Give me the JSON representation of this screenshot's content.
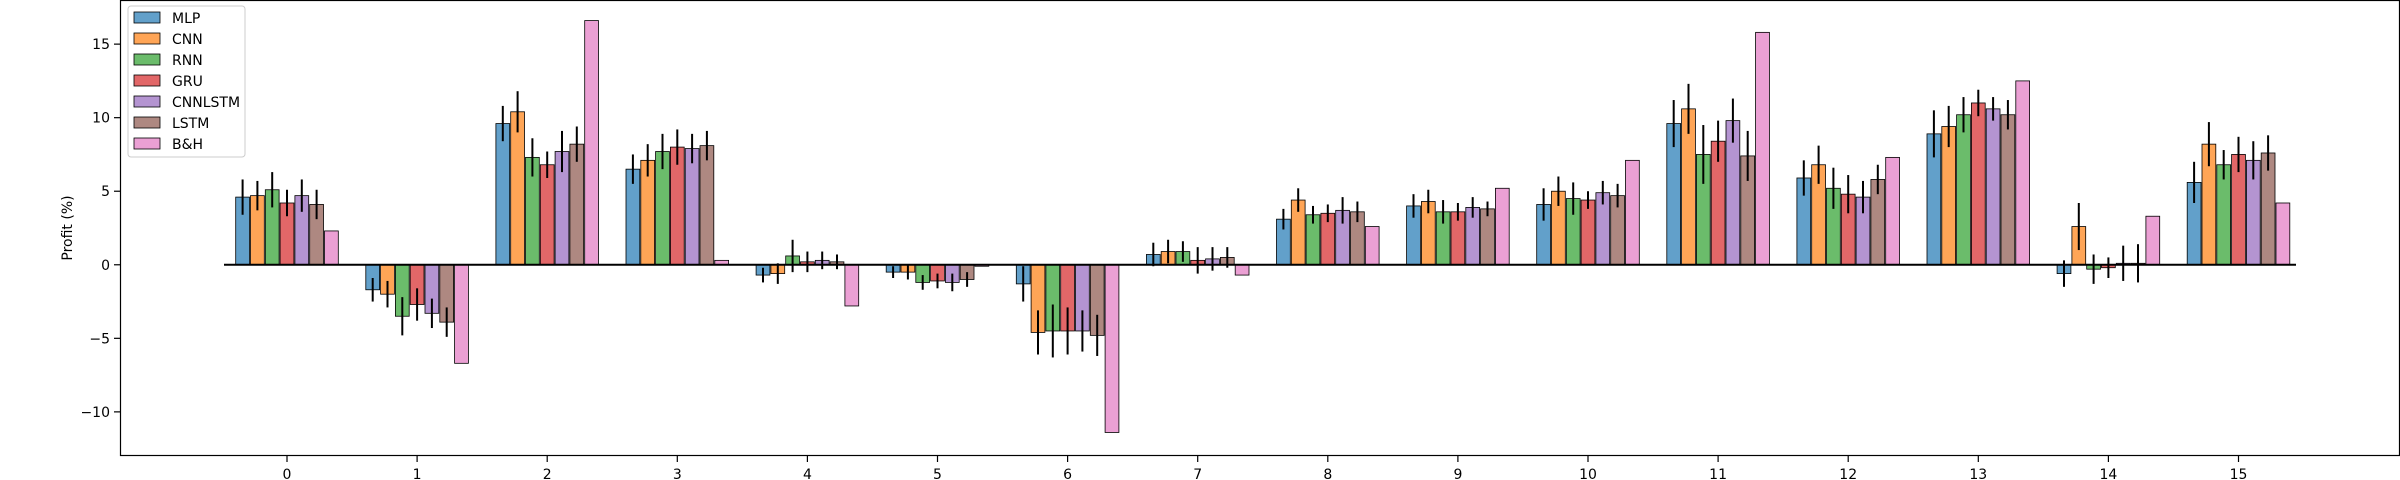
{
  "chart_data": {
    "type": "bar",
    "title": "",
    "xlabel": "",
    "ylabel": "Profit (%)",
    "ylim": [
      -13,
      18
    ],
    "yticks": [
      -10,
      -5,
      0,
      5,
      10,
      15
    ],
    "ytick_labels": [
      "−10",
      "−5",
      "0",
      "5",
      "10",
      "15"
    ],
    "categories": [
      "0",
      "1",
      "2",
      "3",
      "4",
      "5",
      "6",
      "7",
      "8",
      "9",
      "10",
      "11",
      "12",
      "13",
      "14",
      "15"
    ],
    "legend_position": "top-left",
    "grid": false,
    "series": [
      {
        "name": "MLP",
        "color": "#1f77b4",
        "values": [
          4.6,
          -1.7,
          9.6,
          6.5,
          -0.7,
          -0.5,
          -1.3,
          0.7,
          3.1,
          4.0,
          4.1,
          9.6,
          5.9,
          8.9,
          -0.6,
          5.6
        ],
        "errors": [
          1.2,
          0.8,
          1.2,
          1.0,
          0.5,
          0.4,
          1.2,
          0.8,
          0.7,
          0.8,
          1.1,
          1.6,
          1.2,
          1.6,
          0.9,
          1.4
        ]
      },
      {
        "name": "CNN",
        "color": "#ff7f0e",
        "values": [
          4.7,
          -2.0,
          10.4,
          7.1,
          -0.6,
          -0.5,
          -4.6,
          0.9,
          4.4,
          4.3,
          5.0,
          10.6,
          6.8,
          9.4,
          2.6,
          8.2
        ],
        "errors": [
          1.0,
          0.9,
          1.4,
          1.1,
          0.7,
          0.5,
          1.5,
          0.8,
          0.8,
          0.8,
          1.0,
          1.7,
          1.3,
          1.4,
          1.6,
          1.5
        ]
      },
      {
        "name": "RNN",
        "color": "#2ca02c",
        "values": [
          5.1,
          -3.5,
          7.3,
          7.7,
          0.6,
          -1.2,
          -4.5,
          0.9,
          3.4,
          3.6,
          4.5,
          7.5,
          5.2,
          10.2,
          -0.3,
          6.8
        ],
        "errors": [
          1.2,
          1.3,
          1.3,
          1.2,
          1.1,
          0.5,
          1.8,
          0.7,
          0.6,
          0.8,
          1.1,
          2.0,
          1.4,
          1.2,
          1.0,
          1.0
        ]
      },
      {
        "name": "GRU",
        "color": "#d62728",
        "values": [
          4.2,
          -2.7,
          6.8,
          8.0,
          0.2,
          -1.1,
          -4.5,
          0.3,
          3.5,
          3.6,
          4.4,
          8.4,
          4.8,
          11.0,
          -0.2,
          7.5
        ],
        "errors": [
          0.9,
          1.1,
          0.9,
          1.2,
          0.7,
          0.5,
          1.6,
          0.9,
          0.6,
          0.6,
          0.6,
          1.4,
          1.3,
          0.9,
          0.7,
          1.2
        ]
      },
      {
        "name": "CNNLSTM",
        "color": "#9467bd",
        "values": [
          4.7,
          -3.3,
          7.7,
          7.9,
          0.3,
          -1.2,
          -4.5,
          0.4,
          3.7,
          3.9,
          4.9,
          9.8,
          4.6,
          10.6,
          0.1,
          7.1
        ],
        "errors": [
          1.1,
          1.0,
          1.4,
          1.0,
          0.6,
          0.6,
          1.4,
          0.8,
          0.9,
          0.7,
          0.8,
          1.5,
          1.1,
          0.8,
          1.2,
          1.3
        ]
      },
      {
        "name": "LSTM",
        "color": "#8c564b",
        "values": [
          4.1,
          -3.9,
          8.2,
          8.1,
          0.2,
          -1.0,
          -4.8,
          0.5,
          3.6,
          3.8,
          4.7,
          7.4,
          5.8,
          10.2,
          0.1,
          7.6
        ],
        "errors": [
          1.0,
          1.0,
          1.2,
          1.0,
          0.5,
          0.5,
          1.4,
          0.7,
          0.7,
          0.5,
          0.8,
          1.7,
          1.0,
          1.0,
          1.3,
          1.2
        ]
      },
      {
        "name": "B&H",
        "color": "#e377c2",
        "values": [
          2.3,
          -6.7,
          16.6,
          0.3,
          -2.8,
          -0.1,
          -11.4,
          -0.7,
          2.6,
          5.2,
          7.1,
          15.8,
          7.3,
          12.5,
          3.3,
          4.2
        ],
        "errors": [
          0,
          0,
          0,
          0,
          0,
          0,
          0,
          0,
          0,
          0,
          0,
          0,
          0,
          0,
          0,
          0
        ]
      }
    ]
  }
}
